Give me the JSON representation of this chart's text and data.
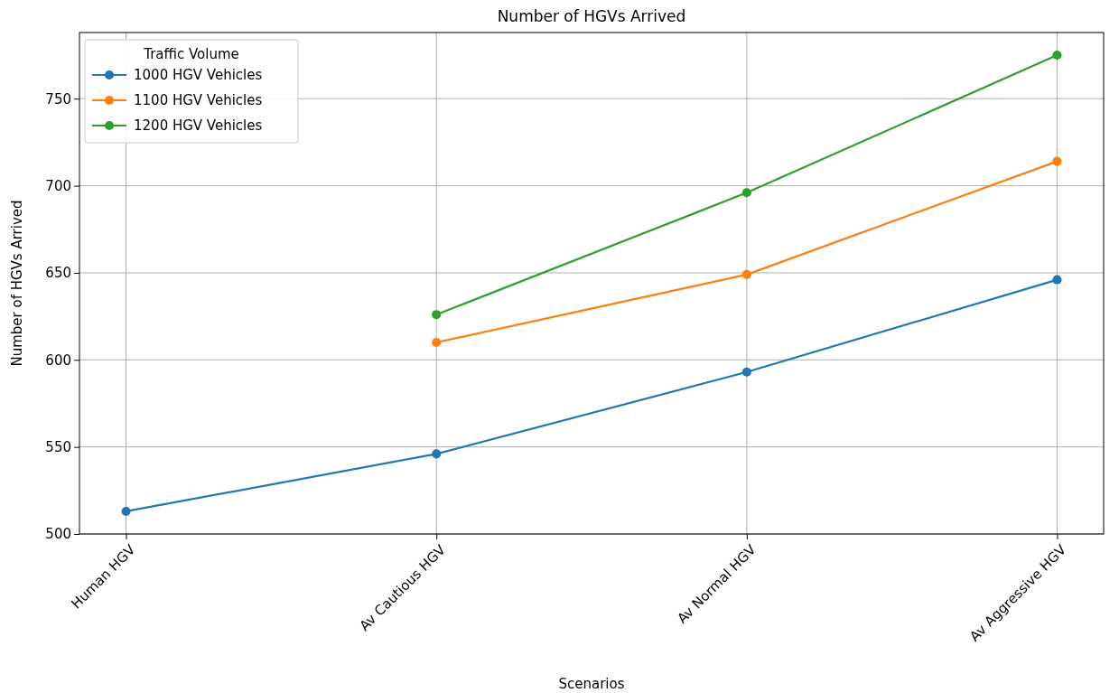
{
  "chart_data": {
    "type": "line",
    "title": "Number of HGVs Arrived",
    "xlabel": "Scenarios",
    "ylabel": "Number of HGVs Arrived",
    "legend_title": "Traffic Volume",
    "categories": [
      "Human HGV",
      "Av Cautious HGV",
      "Av Normal HGV",
      "Av Aggressive HGV"
    ],
    "series": [
      {
        "name": "1000 HGV Vehicles",
        "color": "#1f77b4",
        "values": [
          513,
          546,
          593,
          646
        ]
      },
      {
        "name": "1100 HGV Vehicles",
        "color": "#ff7f0e",
        "values": [
          null,
          610,
          649,
          714
        ]
      },
      {
        "name": "1200 HGV Vehicles",
        "color": "#2ca02c",
        "values": [
          null,
          626,
          696,
          775
        ]
      }
    ],
    "ylim": [
      500,
      788
    ],
    "yticks": [
      500,
      550,
      600,
      650,
      700,
      750
    ],
    "grid": true,
    "legend": "top left",
    "marker": "circle",
    "line_style": "solid"
  }
}
